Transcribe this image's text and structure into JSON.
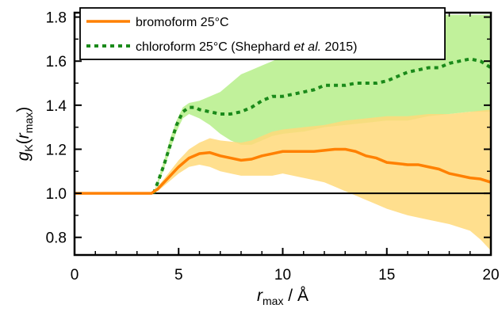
{
  "chart_data": {
    "type": "line",
    "xlim": [
      0,
      20
    ],
    "ylim": [
      0.72,
      1.82
    ],
    "x_ticks": [
      0,
      5,
      10,
      15,
      20
    ],
    "y_ticks": [
      0.8,
      1.0,
      1.2,
      1.4,
      1.6,
      1.8
    ],
    "x_tick_labels": [
      "0",
      "5",
      "10",
      "15",
      "20"
    ],
    "y_tick_labels": [
      "0.8",
      "1.0",
      "1.2",
      "1.4",
      "1.6",
      "1.8"
    ],
    "xlabel": {
      "var": "r",
      "sub": "max",
      "unit": " / Å"
    },
    "ylabel": {
      "var": "g",
      "sub1": "K",
      "open": "(",
      "var2": "r",
      "sub2": "max",
      "close": ")"
    },
    "reference_line": 1.0,
    "grid": false,
    "legend_position": "top-left",
    "series": [
      {
        "name": "bromoform 25°C",
        "style": "solid",
        "color": "#ff8000",
        "band_color": "#ffd97a",
        "points": [
          [
            0,
            1.0
          ],
          [
            1,
            1.0
          ],
          [
            2,
            1.0
          ],
          [
            3,
            1.0
          ],
          [
            3.7,
            1.0
          ],
          [
            4.0,
            1.02
          ],
          [
            4.5,
            1.07
          ],
          [
            5.0,
            1.12
          ],
          [
            5.5,
            1.16
          ],
          [
            6.0,
            1.18
          ],
          [
            6.5,
            1.185
          ],
          [
            7.0,
            1.17
          ],
          [
            7.5,
            1.16
          ],
          [
            8.0,
            1.15
          ],
          [
            8.5,
            1.155
          ],
          [
            9.0,
            1.17
          ],
          [
            9.5,
            1.18
          ],
          [
            10.0,
            1.19
          ],
          [
            10.5,
            1.19
          ],
          [
            11.0,
            1.19
          ],
          [
            11.5,
            1.19
          ],
          [
            12.0,
            1.195
          ],
          [
            12.5,
            1.2
          ],
          [
            13.0,
            1.2
          ],
          [
            13.5,
            1.19
          ],
          [
            14.0,
            1.17
          ],
          [
            14.5,
            1.16
          ],
          [
            15.0,
            1.14
          ],
          [
            15.5,
            1.135
          ],
          [
            16.0,
            1.13
          ],
          [
            16.5,
            1.13
          ],
          [
            17.0,
            1.12
          ],
          [
            17.5,
            1.11
          ],
          [
            18.0,
            1.09
          ],
          [
            18.5,
            1.08
          ],
          [
            19.0,
            1.07
          ],
          [
            19.5,
            1.065
          ],
          [
            20.0,
            1.05
          ]
        ],
        "band_upper": [
          [
            0,
            1.0
          ],
          [
            3.7,
            1.0
          ],
          [
            4.0,
            1.03
          ],
          [
            4.5,
            1.09
          ],
          [
            5.0,
            1.15
          ],
          [
            5.5,
            1.2
          ],
          [
            6.0,
            1.23
          ],
          [
            6.5,
            1.25
          ],
          [
            7.0,
            1.24
          ],
          [
            7.5,
            1.235
          ],
          [
            8.0,
            1.23
          ],
          [
            8.5,
            1.24
          ],
          [
            9.0,
            1.26
          ],
          [
            9.5,
            1.28
          ],
          [
            10.0,
            1.29
          ],
          [
            11.0,
            1.3
          ],
          [
            12.0,
            1.31
          ],
          [
            13.0,
            1.33
          ],
          [
            14.0,
            1.34
          ],
          [
            15.0,
            1.35
          ],
          [
            16.0,
            1.35
          ],
          [
            17.0,
            1.36
          ],
          [
            18.0,
            1.36
          ],
          [
            19.0,
            1.37
          ],
          [
            20.0,
            1.38
          ]
        ],
        "band_lower": [
          [
            0,
            1.0
          ],
          [
            3.7,
            1.0
          ],
          [
            4.0,
            1.01
          ],
          [
            4.5,
            1.05
          ],
          [
            5.0,
            1.09
          ],
          [
            5.5,
            1.12
          ],
          [
            6.0,
            1.13
          ],
          [
            6.5,
            1.12
          ],
          [
            7.0,
            1.1
          ],
          [
            7.5,
            1.09
          ],
          [
            8.0,
            1.08
          ],
          [
            8.5,
            1.08
          ],
          [
            9.0,
            1.08
          ],
          [
            9.5,
            1.08
          ],
          [
            10.0,
            1.09
          ],
          [
            10.5,
            1.08
          ],
          [
            11.0,
            1.07
          ],
          [
            11.5,
            1.06
          ],
          [
            12.0,
            1.05
          ],
          [
            12.5,
            1.03
          ],
          [
            13.0,
            1.01
          ],
          [
            13.5,
            0.99
          ],
          [
            14.0,
            0.97
          ],
          [
            14.5,
            0.95
          ],
          [
            15.0,
            0.93
          ],
          [
            16.0,
            0.9
          ],
          [
            17.0,
            0.88
          ],
          [
            18.0,
            0.86
          ],
          [
            19.0,
            0.83
          ],
          [
            19.5,
            0.79
          ],
          [
            20.0,
            0.74
          ]
        ]
      },
      {
        "name": "chloroform 25°C (Shephard et al. 2015)",
        "name_parts": [
          "chloroform 25°C (Shephard ",
          "et al.",
          " 2015)"
        ],
        "style": "dotted",
        "color": "#1a8a1a",
        "band_color": "#b6ef8a",
        "points": [
          [
            3.8,
            1.0
          ],
          [
            4.0,
            1.05
          ],
          [
            4.3,
            1.13
          ],
          [
            4.6,
            1.22
          ],
          [
            4.9,
            1.31
          ],
          [
            5.2,
            1.37
          ],
          [
            5.5,
            1.39
          ],
          [
            5.8,
            1.39
          ],
          [
            6.0,
            1.38
          ],
          [
            6.5,
            1.37
          ],
          [
            7.0,
            1.36
          ],
          [
            7.5,
            1.36
          ],
          [
            8.0,
            1.37
          ],
          [
            8.5,
            1.39
          ],
          [
            9.0,
            1.42
          ],
          [
            9.5,
            1.44
          ],
          [
            10.0,
            1.44
          ],
          [
            10.5,
            1.45
          ],
          [
            11.0,
            1.46
          ],
          [
            11.5,
            1.47
          ],
          [
            12.0,
            1.49
          ],
          [
            12.5,
            1.49
          ],
          [
            13.0,
            1.49
          ],
          [
            13.5,
            1.5
          ],
          [
            14.0,
            1.5
          ],
          [
            14.5,
            1.5
          ],
          [
            15.0,
            1.51
          ],
          [
            15.5,
            1.53
          ],
          [
            16.0,
            1.55
          ],
          [
            16.5,
            1.56
          ],
          [
            17.0,
            1.57
          ],
          [
            17.5,
            1.57
          ],
          [
            18.0,
            1.59
          ],
          [
            18.5,
            1.6
          ],
          [
            19.0,
            1.61
          ],
          [
            19.5,
            1.6
          ],
          [
            20.0,
            1.57
          ]
        ],
        "band_upper": [
          [
            3.8,
            1.0
          ],
          [
            4.0,
            1.06
          ],
          [
            4.3,
            1.15
          ],
          [
            4.6,
            1.25
          ],
          [
            4.9,
            1.33
          ],
          [
            5.2,
            1.39
          ],
          [
            5.5,
            1.41
          ],
          [
            6.0,
            1.42
          ],
          [
            6.5,
            1.44
          ],
          [
            7.0,
            1.46
          ],
          [
            7.5,
            1.5
          ],
          [
            8.0,
            1.54
          ],
          [
            8.5,
            1.56
          ],
          [
            9.0,
            1.58
          ],
          [
            9.5,
            1.6
          ],
          [
            10.0,
            1.62
          ],
          [
            11.0,
            1.65
          ],
          [
            12.0,
            1.67
          ],
          [
            13.0,
            1.7
          ],
          [
            14.0,
            1.72
          ],
          [
            15.0,
            1.75
          ],
          [
            16.0,
            1.78
          ],
          [
            17.0,
            1.8
          ],
          [
            17.5,
            1.81
          ],
          [
            20.0,
            1.81
          ]
        ],
        "band_lower": [
          [
            3.8,
            1.0
          ],
          [
            4.0,
            1.04
          ],
          [
            4.3,
            1.11
          ],
          [
            4.6,
            1.2
          ],
          [
            4.9,
            1.28
          ],
          [
            5.2,
            1.34
          ],
          [
            5.5,
            1.36
          ],
          [
            6.0,
            1.34
          ],
          [
            6.5,
            1.31
          ],
          [
            7.0,
            1.27
          ],
          [
            7.5,
            1.24
          ],
          [
            8.0,
            1.22
          ],
          [
            8.5,
            1.22
          ],
          [
            9.0,
            1.24
          ],
          [
            9.5,
            1.26
          ],
          [
            10.0,
            1.27
          ],
          [
            11.0,
            1.28
          ],
          [
            12.0,
            1.3
          ],
          [
            13.0,
            1.31
          ],
          [
            14.0,
            1.32
          ],
          [
            15.0,
            1.33
          ],
          [
            16.0,
            1.33
          ],
          [
            17.0,
            1.35
          ],
          [
            18.0,
            1.36
          ],
          [
            19.0,
            1.37
          ],
          [
            20.0,
            1.37
          ]
        ]
      }
    ]
  }
}
